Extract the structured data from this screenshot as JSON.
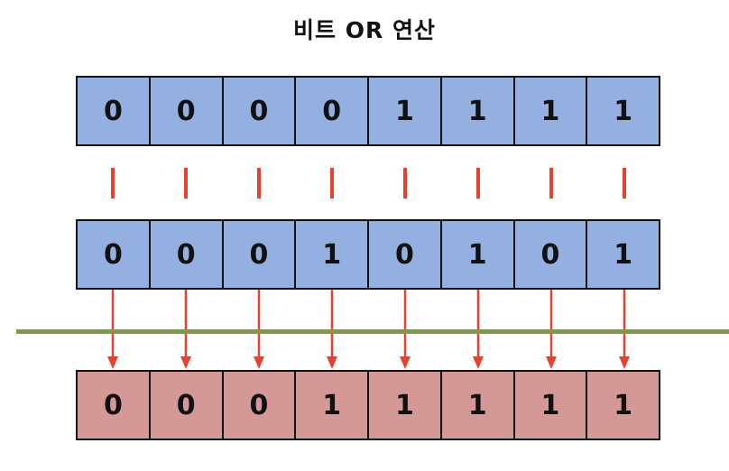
{
  "title": "비트 OR 연산",
  "operand_a": [
    "0",
    "0",
    "0",
    "0",
    "1",
    "1",
    "1",
    "1"
  ],
  "operand_b": [
    "0",
    "0",
    "0",
    "1",
    "0",
    "1",
    "0",
    "1"
  ],
  "result": [
    "0",
    "0",
    "0",
    "1",
    "1",
    "1",
    "1",
    "1"
  ],
  "operator_symbol": "|",
  "colors": {
    "operand_fill": "#94b0e0",
    "result_fill": "#d49896",
    "operator": "#e8412e",
    "divider": "#7e9a44"
  }
}
